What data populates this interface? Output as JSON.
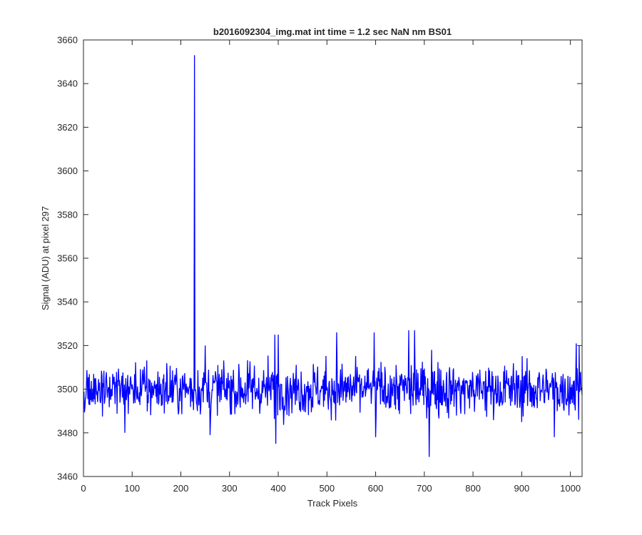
{
  "chart_data": {
    "type": "line",
    "title": "b2016092304_img.mat int time = 1.2 sec  NaN nm BS01",
    "xlabel": "Track Pixels",
    "ylabel": "Signal (ADU) at pixel 297",
    "xlim": [
      0,
      1024
    ],
    "ylim": [
      3460,
      3660
    ],
    "xticks": [
      0,
      100,
      200,
      300,
      400,
      500,
      600,
      700,
      800,
      900,
      1000
    ],
    "yticks": [
      3460,
      3480,
      3500,
      3520,
      3540,
      3560,
      3580,
      3600,
      3620,
      3640,
      3660
    ],
    "grid": false,
    "line_color": "#0000ff",
    "series": [
      {
        "x_start": 1,
        "x_step": 1,
        "baseline": 3500,
        "noise_sd": 6,
        "seed": 297,
        "spikes": [
          {
            "x": 228,
            "y": 3653
          },
          {
            "x": 395,
            "y": 3475
          },
          {
            "x": 710,
            "y": 3469
          },
          {
            "x": 85,
            "y": 3480
          },
          {
            "x": 260,
            "y": 3479
          },
          {
            "x": 600,
            "y": 3478
          },
          {
            "x": 967,
            "y": 3478
          },
          {
            "x": 393,
            "y": 3525
          },
          {
            "x": 400,
            "y": 3525
          },
          {
            "x": 520,
            "y": 3526
          },
          {
            "x": 597,
            "y": 3526
          },
          {
            "x": 668,
            "y": 3527
          },
          {
            "x": 680,
            "y": 3527
          },
          {
            "x": 1012,
            "y": 3521
          },
          {
            "x": 1018,
            "y": 3520
          },
          {
            "x": 250,
            "y": 3520
          },
          {
            "x": 715,
            "y": 3518
          }
        ]
      }
    ]
  }
}
